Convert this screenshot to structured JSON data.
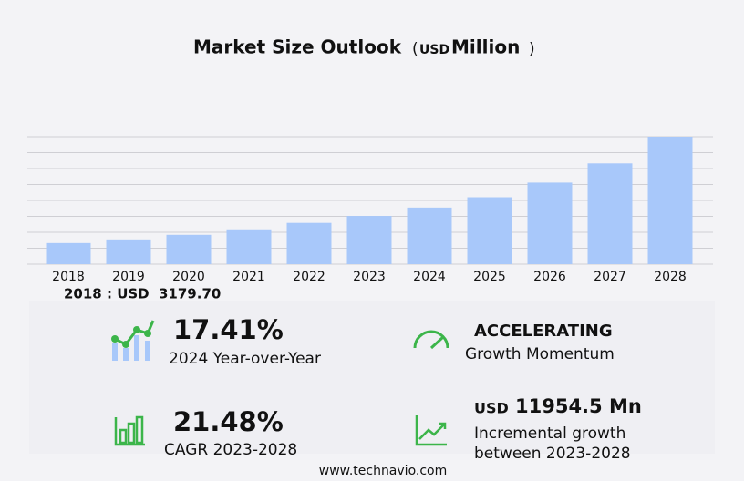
{
  "chart_data": {
    "type": "bar",
    "title": "Market Size Outlook",
    "unit_open": "(",
    "unit_currency": "USD",
    "unit_name": "Million",
    "unit_close": ")",
    "categories": [
      "2018",
      "2019",
      "2020",
      "2021",
      "2022",
      "2023",
      "2024",
      "2025",
      "2026",
      "2027",
      "2028"
    ],
    "values": [
      3179.7,
      3730,
      4420,
      5250,
      6220,
      7267,
      8532,
      10090,
      12300,
      15200,
      19222
    ],
    "color": "#a8c8fa",
    "ylim": [
      0,
      19222
    ],
    "grid": true,
    "base_label": "2018 : USD",
    "base_value": "3179.70"
  },
  "stats": {
    "yoy_value": "17.41%",
    "yoy_label": "2024 Year-over-Year",
    "momentum_value": "ACCELERATING",
    "momentum_label": "Growth Momentum",
    "cagr_value": "21.48%",
    "cagr_label": "CAGR 2023-2028",
    "incr_currency": "USD",
    "incr_value": "11954.5 Mn",
    "incr_label_1": "Incremental growth",
    "incr_label_2": "between 2023-2028"
  },
  "footer": "www.technavio.com"
}
